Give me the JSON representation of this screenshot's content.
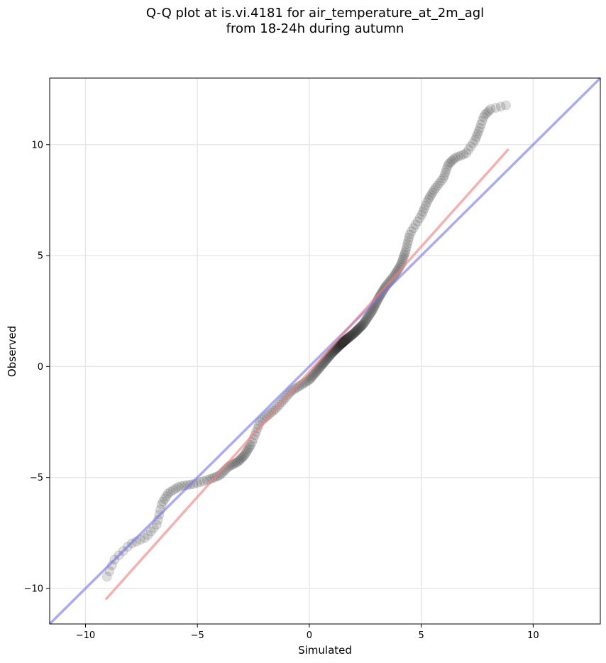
{
  "chart_data": {
    "type": "scatter",
    "title": "Q-Q plot at is.vi.4181 for air_temperature_at_2m_agl",
    "subtitle": "from 18-24h during autumn",
    "xlabel": "Simulated",
    "ylabel": "Observed",
    "xlim": [
      -11.6,
      13.0
    ],
    "ylim": [
      -11.6,
      13.0
    ],
    "xticks": [
      -10,
      -5,
      0,
      5,
      10
    ],
    "yticks": [
      -10,
      -5,
      0,
      5,
      10
    ],
    "xtick_labels": [
      "−10",
      "−5",
      "0",
      "5",
      "10"
    ],
    "ytick_labels": [
      "−10",
      "−5",
      "0",
      "5",
      "10"
    ],
    "grid": true,
    "colors": {
      "points": "#333333",
      "identity_line": "#7777ee",
      "fit_line": "#f08080"
    },
    "lines": [
      {
        "role": "identity",
        "x": [
          -11.6,
          13.0
        ],
        "y": [
          -11.6,
          13.0
        ]
      },
      {
        "role": "fit",
        "x": [
          -9.1,
          8.9
        ],
        "y": [
          -10.5,
          9.8
        ]
      }
    ],
    "quantile_anchors": {
      "x": [
        -9.1,
        -8.7,
        -8.0,
        -7.3,
        -6.8,
        -6.6,
        -6.3,
        -5.8,
        -5.2,
        -4.5,
        -4.0,
        -3.6,
        -3.2,
        -2.9,
        -2.6,
        -2.2,
        -1.5,
        -0.8,
        0.0,
        0.5,
        1.0,
        1.5,
        2.0,
        2.4,
        2.8,
        3.1,
        3.4,
        3.8,
        4.1,
        4.3,
        4.5,
        5.0,
        5.3,
        5.6,
        6.0,
        6.2,
        6.5,
        7.0,
        7.4,
        7.6,
        7.8,
        8.1,
        8.9
      ],
      "y": [
        -9.6,
        -8.7,
        -8.0,
        -7.7,
        -7.1,
        -6.2,
        -5.7,
        -5.4,
        -5.3,
        -5.1,
        -4.9,
        -4.5,
        -4.3,
        -4.0,
        -3.5,
        -2.5,
        -1.9,
        -1.1,
        -0.6,
        0.0,
        0.6,
        1.1,
        1.5,
        1.9,
        2.5,
        3.1,
        3.6,
        4.1,
        4.6,
        5.2,
        6.0,
        6.8,
        7.5,
        8.0,
        8.5,
        9.1,
        9.4,
        9.6,
        10.2,
        10.7,
        11.3,
        11.6,
        11.8
      ]
    },
    "n_points": 320
  }
}
